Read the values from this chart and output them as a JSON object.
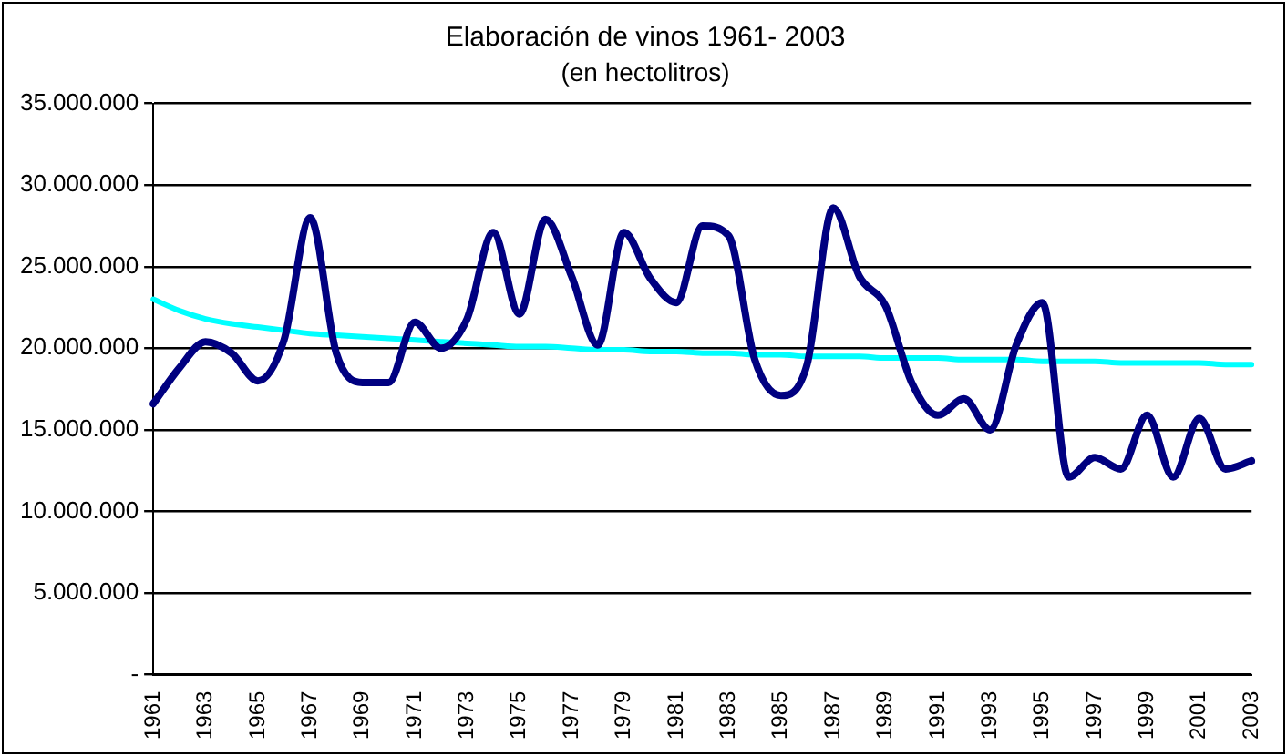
{
  "chart_data": {
    "type": "line",
    "title": "Elaboración de vinos 1961- 2003",
    "subtitle": "(en hectolitros)",
    "categories": [
      "1961",
      null,
      "1963",
      null,
      "1965",
      null,
      "1967",
      null,
      "1969",
      null,
      "1971",
      null,
      "1973",
      null,
      "1975",
      null,
      "1977",
      null,
      "1979",
      null,
      "1981",
      null,
      "1983",
      null,
      "1985",
      null,
      "1987",
      null,
      "1989",
      null,
      "1991",
      null,
      "1993",
      null,
      "1995",
      null,
      "1997",
      null,
      "1999",
      null,
      "2001",
      null,
      "2003"
    ],
    "series": [
      {
        "color": "#000080",
        "values": [
          16600000,
          18800000,
          20400000,
          19700000,
          18000000,
          20500000,
          28000000,
          19700000,
          17900000,
          17900000,
          21600000,
          20000000,
          21800000,
          27100000,
          22100000,
          27900000,
          24400000,
          20200000,
          27100000,
          24300000,
          22800000,
          27500000,
          26900000,
          19300000,
          17100000,
          19000000,
          28600000,
          24400000,
          22600000,
          17900000,
          15900000,
          16900000,
          15000000,
          20200000,
          22800000,
          12100000,
          13300000,
          12600000,
          15900000,
          12100000,
          15700000,
          12600000,
          13100000
        ]
      },
      {
        "color": "#00ffff",
        "values": [
          23000000,
          22300000,
          21800000,
          21500000,
          21300000,
          21100000,
          20900000,
          20800000,
          20700000,
          20600000,
          20500000,
          20400000,
          20300000,
          20200000,
          20100000,
          20100000,
          20000000,
          19900000,
          19900000,
          19800000,
          19800000,
          19700000,
          19700000,
          19600000,
          19600000,
          19500000,
          19500000,
          19500000,
          19400000,
          19400000,
          19400000,
          19300000,
          19300000,
          19300000,
          19200000,
          19200000,
          19200000,
          19100000,
          19100000,
          19100000,
          19100000,
          19000000,
          19000000
        ]
      }
    ],
    "ylim": [
      0,
      35000000
    ],
    "yticks": [
      {
        "value": 0,
        "label": "-"
      },
      {
        "value": 5000000,
        "label": "5.000.000"
      },
      {
        "value": 10000000,
        "label": "10.000.000"
      },
      {
        "value": 15000000,
        "label": "15.000.000"
      },
      {
        "value": 20000000,
        "label": "20.000.000"
      },
      {
        "value": 25000000,
        "label": "25.000.000"
      },
      {
        "value": 30000000,
        "label": "30.000.000"
      },
      {
        "value": 35000000,
        "label": "35.000.000"
      }
    ],
    "grid": "y",
    "legend": false,
    "marker": "none",
    "line_style": "solid"
  }
}
